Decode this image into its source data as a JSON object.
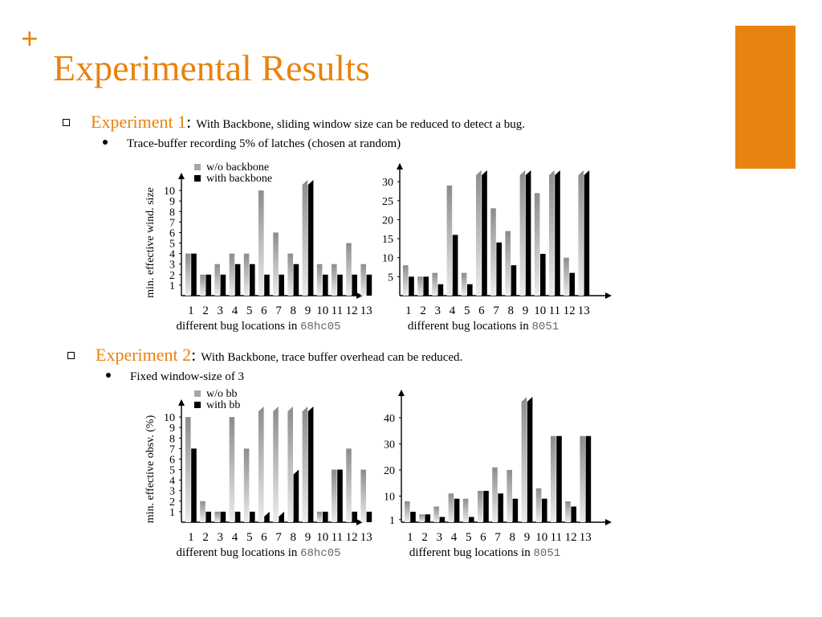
{
  "slide": {
    "plus": "+",
    "title": "Experimental Results",
    "experiment1": {
      "name": "Experiment 1",
      "colon": ":",
      "desc": "With Backbone, sliding window size can be reduced to detect a bug.",
      "sub": "Trace-buffer recording 5% of latches (chosen at random)"
    },
    "experiment2": {
      "name": "Experiment 2",
      "colon": ":",
      "desc": "With Backbone, trace buffer overhead can be reduced.",
      "sub": "Fixed window-size of 3"
    }
  },
  "colors": {
    "accent": "#E8830F",
    "bar_light": "#a6a6a6",
    "bar_dark": "#000000"
  },
  "chart_data": [
    {
      "type": "bar",
      "categories": [
        "1",
        "2",
        "3",
        "4",
        "5",
        "6",
        "7",
        "8",
        "9",
        "10",
        "11",
        "12",
        "13"
      ],
      "series": [
        {
          "name": "w/o backbone",
          "values": [
            4,
            2,
            3,
            4,
            4,
            10,
            6,
            4,
            11,
            3,
            3,
            5,
            3
          ]
        },
        {
          "name": "with backbone",
          "values": [
            4,
            2,
            2,
            3,
            3,
            2,
            2,
            3,
            11,
            2,
            2,
            2,
            2
          ]
        }
      ],
      "truncated": [
        8
      ],
      "ylabel": "min. effective wind. size",
      "xlabel": "different bug locations in",
      "xlabel_mono": "68hc05",
      "yticks": [
        1,
        2,
        3,
        4,
        5,
        6,
        7,
        8,
        9,
        10
      ],
      "ylim": [
        0,
        11
      ],
      "legend": "top-left"
    },
    {
      "type": "bar",
      "categories": [
        "1",
        "2",
        "3",
        "4",
        "5",
        "6",
        "7",
        "8",
        "9",
        "10",
        "11",
        "12",
        "13"
      ],
      "series": [
        {
          "name": "",
          "values": [
            8,
            5,
            6,
            29,
            6,
            33,
            23,
            17,
            33,
            27,
            33,
            10,
            33
          ]
        },
        {
          "name": "",
          "values": [
            5,
            5,
            3,
            16,
            3,
            33,
            14,
            8,
            33,
            11,
            33,
            6,
            33
          ]
        }
      ],
      "truncated": [
        5,
        8,
        10,
        12
      ],
      "ylabel": "",
      "xlabel": "different bug locations in",
      "xlabel_mono": "8051",
      "yticks": [
        5,
        10,
        15,
        20,
        25,
        30
      ],
      "ylim": [
        0,
        33
      ],
      "legend": "none"
    },
    {
      "type": "bar",
      "categories": [
        "1",
        "2",
        "3",
        "4",
        "5",
        "6",
        "7",
        "8",
        "9",
        "10",
        "11",
        "12",
        "13"
      ],
      "series": [
        {
          "name": "w/o bb",
          "values": [
            10,
            2,
            1,
            10,
            7,
            11,
            11,
            11,
            11,
            1,
            5,
            7,
            5
          ]
        },
        {
          "name": "with bb",
          "values": [
            7,
            1,
            1,
            1,
            1,
            1,
            1,
            5,
            11,
            1,
            5,
            1,
            1
          ]
        }
      ],
      "truncated": [
        5,
        6,
        7,
        8
      ],
      "ylabel": "min. effective obsv. (%)",
      "xlabel": "different bug locations in",
      "xlabel_mono": "68hc05",
      "yticks": [
        1,
        2,
        3,
        4,
        5,
        6,
        7,
        8,
        9,
        10
      ],
      "ylim": [
        0,
        11
      ],
      "legend": "top-left"
    },
    {
      "type": "bar",
      "categories": [
        "1",
        "2",
        "3",
        "4",
        "5",
        "6",
        "7",
        "8",
        "9",
        "10",
        "11",
        "12",
        "13"
      ],
      "series": [
        {
          "name": "",
          "values": [
            8,
            3,
            6,
            11,
            9,
            12,
            21,
            20,
            48,
            13,
            33,
            8,
            33
          ]
        },
        {
          "name": "",
          "values": [
            4,
            3,
            2,
            9,
            2,
            12,
            11,
            9,
            48,
            9,
            33,
            6,
            33
          ]
        }
      ],
      "truncated": [
        8
      ],
      "ylabel": "",
      "xlabel": "different bug locations in",
      "xlabel_mono": "8051",
      "yticks": [
        1,
        10,
        20,
        30,
        40
      ],
      "ylim": [
        0,
        48
      ],
      "legend": "none"
    }
  ]
}
